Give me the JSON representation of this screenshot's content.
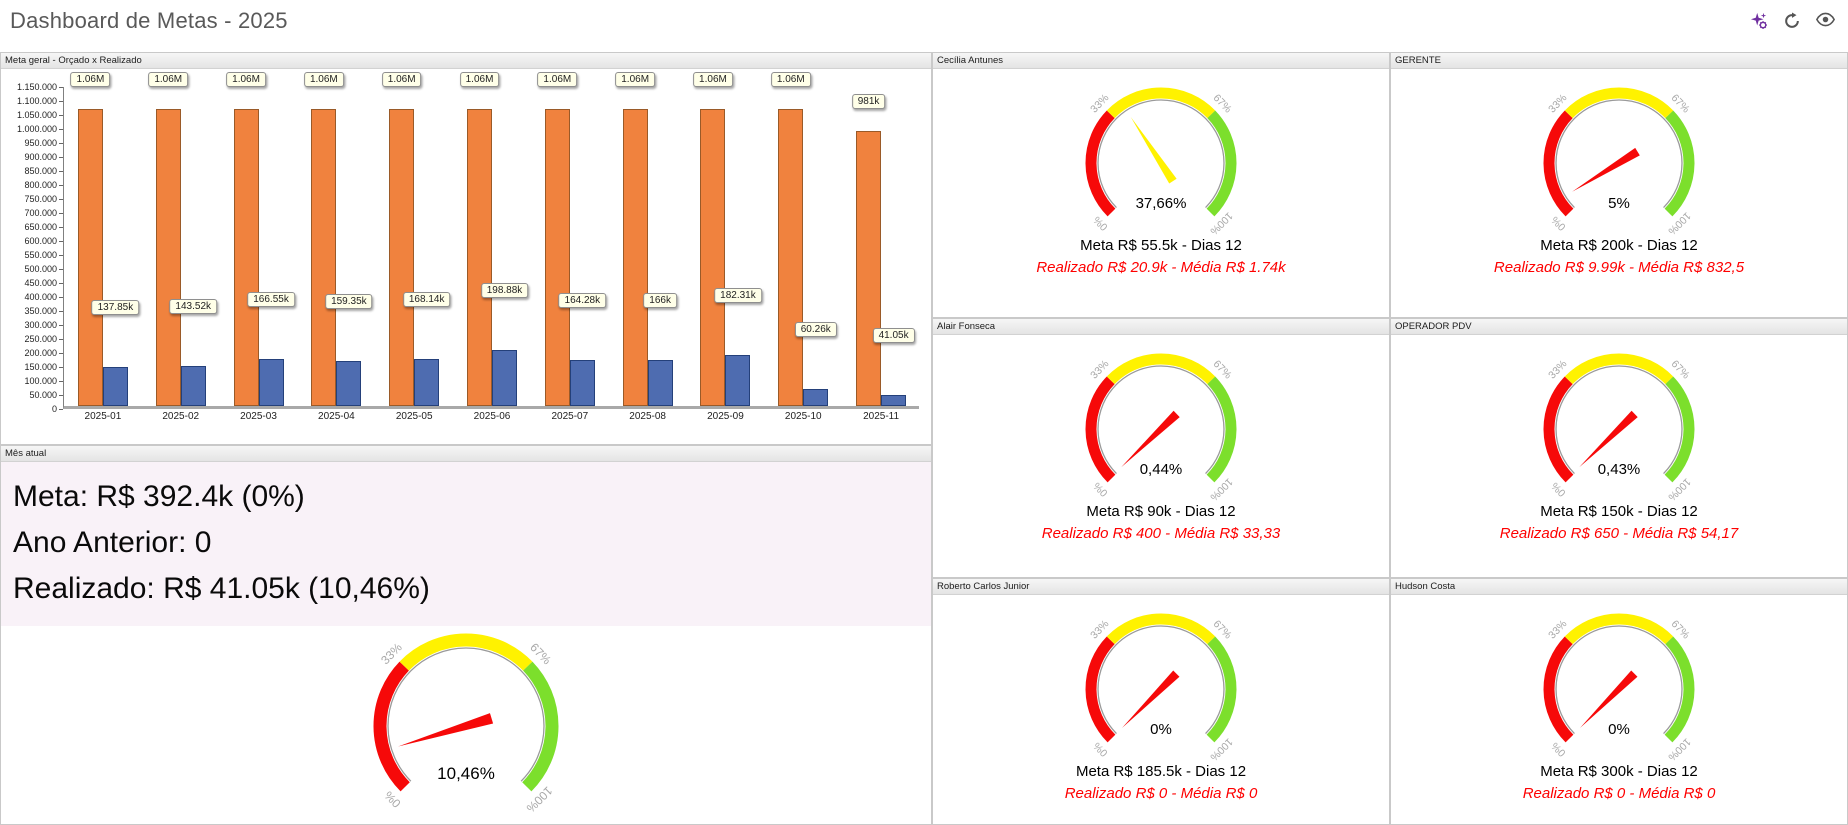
{
  "header": {
    "title": "Dashboard de Metas - 2025",
    "icons": [
      {
        "name": "ai-settings-icon",
        "color": "#7030a0"
      },
      {
        "name": "refresh-icon",
        "color": "#555555"
      },
      {
        "name": "visibility-icon",
        "color": "#555555"
      }
    ]
  },
  "panels": {
    "meta_geral_title": "Meta geral - Orçado x Realizado",
    "mes_atual_title": "Mês atual"
  },
  "mes_atual": {
    "lines": [
      "Meta: R$ 392.4k (0%)",
      "Ano Anterior: 0",
      "Realizado: R$ 41.05k (10,46%)"
    ]
  },
  "gauge_scale": {
    "ticks": [
      {
        "value": 0,
        "label": "0%"
      },
      {
        "value": 33,
        "label": "33%"
      },
      {
        "value": 67,
        "label": "67%"
      },
      {
        "value": 100,
        "label": "100%"
      }
    ],
    "zones": [
      {
        "from": 0,
        "to": 33,
        "color": "#f60909"
      },
      {
        "from": 33,
        "to": 67,
        "color": "#fff200"
      },
      {
        "from": 67,
        "to": 100,
        "color": "#7cdf2c"
      }
    ]
  },
  "chart_data": [
    {
      "type": "bar",
      "title": "Meta geral - Orçado x Realizado",
      "categories": [
        "2025-01",
        "2025-02",
        "2025-03",
        "2025-04",
        "2025-05",
        "2025-06",
        "2025-07",
        "2025-08",
        "2025-09",
        "2025-10",
        "2025-11"
      ],
      "series": [
        {
          "name": "Orçado",
          "color": "#f0823e",
          "border": "#9a5a28",
          "values": [
            1060000,
            1060000,
            1060000,
            1060000,
            1060000,
            1060000,
            1060000,
            1060000,
            1060000,
            1060000,
            981000
          ],
          "labels": [
            "1.06M",
            "1.06M",
            "1.06M",
            "1.06M",
            "1.06M",
            "1.06M",
            "1.06M",
            "1.06M",
            "1.06M",
            "1.06M",
            "981k"
          ]
        },
        {
          "name": "Realizado",
          "color": "#4e6cb0",
          "border": "#24407a",
          "values": [
            137850,
            143520,
            166550,
            159350,
            168140,
            198880,
            164280,
            166000,
            182310,
            60260,
            41050
          ],
          "labels": [
            "137.85k",
            "143.52k",
            "166.55k",
            "159.35k",
            "168.14k",
            "198.88k",
            "164.28k",
            "166k",
            "182.31k",
            "60.26k",
            "41.05k"
          ]
        }
      ],
      "xlabel": "",
      "ylabel": "",
      "ylim": [
        0,
        1150000
      ],
      "y_tick_step": 50000,
      "grid": false,
      "legend": "none"
    },
    {
      "type": "gauge",
      "title": "Mês atual",
      "value": 10.46,
      "label": "10,46%",
      "min_label": "0%",
      "max_label": "100%"
    },
    {
      "type": "gauge",
      "title": "Cecília Antunes",
      "value": 37.66,
      "label": "37,66%"
    },
    {
      "type": "gauge",
      "title": "GERENTE",
      "value": 5,
      "label": "5%"
    },
    {
      "type": "gauge",
      "title": "Alair Fonseca",
      "value": 0.44,
      "label": "0,44%"
    },
    {
      "type": "gauge",
      "title": "OPERADOR PDV",
      "value": 0.43,
      "label": "0,43%"
    },
    {
      "type": "gauge",
      "title": "Roberto Carlos Junior",
      "value": 0,
      "label": "0%"
    },
    {
      "type": "gauge",
      "title": "Hudson Costa",
      "value": 0,
      "label": "0%"
    }
  ],
  "people": [
    {
      "name": "Cecília Antunes",
      "meta": "Meta R$ 55.5k - Dias 12",
      "realizado": "Realizado R$ 20.9k - Média R$ 1.74k"
    },
    {
      "name": "GERENTE",
      "meta": "Meta R$ 200k - Dias 12",
      "realizado": "Realizado R$ 9.99k - Média R$ 832,5"
    },
    {
      "name": "Alair Fonseca",
      "meta": "Meta R$ 90k - Dias 12",
      "realizado": "Realizado R$ 400 - Média R$ 33,33"
    },
    {
      "name": "OPERADOR PDV",
      "meta": "Meta R$ 150k - Dias 12",
      "realizado": "Realizado R$ 650 - Média R$ 54,17"
    },
    {
      "name": "Roberto Carlos Junior",
      "meta": "Meta R$ 185.5k - Dias 12",
      "realizado": "Realizado R$ 0 - Média R$ 0"
    },
    {
      "name": "Hudson Costa",
      "meta": "Meta R$ 300k - Dias 12",
      "realizado": "Realizado R$ 0 - Média R$ 0"
    }
  ]
}
